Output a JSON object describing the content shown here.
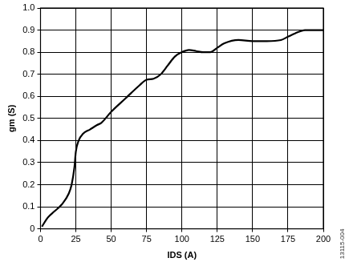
{
  "chart_data": {
    "type": "line",
    "x_label": "IDS (A)",
    "y_label": "gm (S)",
    "annotations": [
      "13115-004"
    ],
    "x": [
      1,
      5,
      10,
      15,
      20,
      22,
      24,
      25,
      27,
      30,
      35,
      40,
      43,
      50,
      60,
      70,
      75,
      80,
      85,
      90,
      95,
      100,
      105,
      110,
      115,
      120,
      125,
      130,
      140,
      150,
      160,
      170,
      175,
      180,
      187,
      200
    ],
    "series": [
      {
        "name": "gm",
        "color": "#000000",
        "values": [
          0.01,
          0.05,
          0.08,
          0.11,
          0.16,
          0.2,
          0.28,
          0.35,
          0.4,
          0.43,
          0.45,
          0.47,
          0.48,
          0.53,
          0.59,
          0.65,
          0.675,
          0.68,
          0.7,
          0.74,
          0.78,
          0.8,
          0.81,
          0.805,
          0.8,
          0.8,
          0.82,
          0.84,
          0.855,
          0.85,
          0.85,
          0.855,
          0.87,
          0.885,
          0.9,
          0.9
        ]
      }
    ],
    "xlim": [
      0,
      200
    ],
    "xticks": [
      0,
      25,
      50,
      75,
      100,
      125,
      150,
      175,
      200
    ],
    "ylim": [
      0,
      1
    ],
    "yticks": [
      0,
      0.1,
      0.2,
      0.3,
      0.4,
      0.5,
      0.6,
      0.7,
      0.8,
      0.9,
      {
        "value": 1,
        "label": "1.0"
      }
    ],
    "grid": true
  }
}
